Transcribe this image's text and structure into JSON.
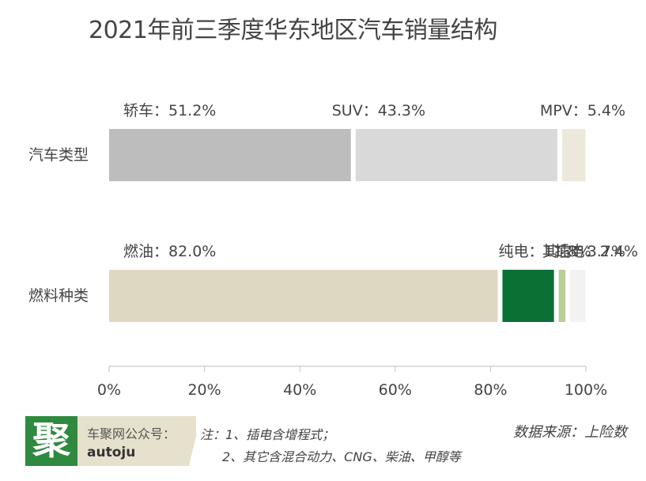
{
  "title": "2021年前三季度华东地区汽车销量结构",
  "chart_data": {
    "type": "bar",
    "orientation": "horizontal",
    "stacked": true,
    "title": "2021年前三季度华东地区汽车销量结构",
    "categories": [
      "汽车类型",
      "燃料种类"
    ],
    "rows": [
      {
        "category": "汽车类型",
        "segments": [
          {
            "label": "轿车",
            "value": 51.2,
            "value_label": "51.2%",
            "color": "#bdbdbd"
          },
          {
            "label": "SUV",
            "value": 43.3,
            "value_label": "43.3%",
            "color": "#d9d9d9"
          },
          {
            "label": "MPV",
            "value": 5.4,
            "value_label": "5.4%",
            "color": "#ece9dc"
          }
        ]
      },
      {
        "category": "燃料种类",
        "segments": [
          {
            "label": "燃油",
            "value": 82.0,
            "value_label": "82.0%",
            "color": "#ded8c3"
          },
          {
            "label": "纯电",
            "value": 11.8,
            "value_label": "11.8%",
            "color": "#0a7034"
          },
          {
            "label": "插电",
            "value": 2.4,
            "value_label": "2.4%",
            "color": "#b7cf96"
          },
          {
            "label": "其它",
            "value": 3.7,
            "value_label": "3.7%",
            "color": "#f2f2f2"
          }
        ]
      }
    ],
    "xaxis": {
      "ticks": [
        0,
        20,
        40,
        60,
        80,
        100
      ],
      "tick_labels": [
        "0%",
        "20%",
        "40%",
        "60%",
        "80%",
        "100%"
      ],
      "range": [
        0,
        100
      ]
    },
    "grid": false,
    "legend": "none"
  },
  "footer": {
    "logo_char": "聚",
    "account_label": "车聚网公众号：",
    "account_id": "autoju",
    "note_1": "注：1、插电含增程式；",
    "note_2": "2、其它含混合动力、CNG、柴油、甲醇等",
    "source": "数据来源：上险数"
  }
}
